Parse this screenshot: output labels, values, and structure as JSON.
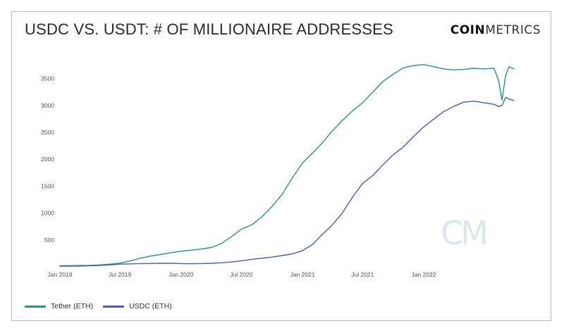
{
  "title": "USDC VS. USDT: # OF MILLIONAIRE ADDRESSES",
  "brand": {
    "bold": "COIN",
    "light": "METRICS"
  },
  "watermark": "CM",
  "colors": {
    "tether": "#24957e",
    "usdc": "#4b5cb6",
    "frame": "#b9b9b9",
    "watermark": "#dfe7ee"
  },
  "chart_data": {
    "type": "line",
    "title": "USDC VS. USDT: # OF MILLIONAIRE ADDRESSES",
    "xlabel": "",
    "ylabel": "",
    "x_range": [
      "2019-01-01",
      "2022-09-30"
    ],
    "ylim": [
      0,
      3900
    ],
    "grid": false,
    "legend": "bottom-left",
    "y_ticks": [
      500,
      1000,
      1500,
      2000,
      2500,
      3000,
      3500
    ],
    "y_tick_labels": [
      "500",
      "1000",
      "1500",
      "2000",
      "2500",
      "3000",
      "3500"
    ],
    "x_ticks": [
      "2019-01-01",
      "2019-07-01",
      "2020-01-01",
      "2020-07-01",
      "2021-01-01",
      "2021-07-01",
      "2022-01-01"
    ],
    "x_tick_labels": [
      "Jan 2019",
      "Jul 2019",
      "Jan 2020",
      "Jul 2020",
      "Jan 2021",
      "Jul 2021",
      "Jan 2022"
    ],
    "series": [
      {
        "name": "Tether (ETH)",
        "color": "#24957e",
        "points": [
          [
            "2019-01-01",
            20
          ],
          [
            "2019-02-01",
            22
          ],
          [
            "2019-03-01",
            25
          ],
          [
            "2019-04-01",
            28
          ],
          [
            "2019-05-01",
            35
          ],
          [
            "2019-06-01",
            50
          ],
          [
            "2019-07-01",
            70
          ],
          [
            "2019-08-01",
            110
          ],
          [
            "2019-09-01",
            160
          ],
          [
            "2019-10-01",
            200
          ],
          [
            "2019-11-01",
            230
          ],
          [
            "2019-12-01",
            260
          ],
          [
            "2020-01-01",
            290
          ],
          [
            "2020-02-01",
            310
          ],
          [
            "2020-03-01",
            330
          ],
          [
            "2020-04-01",
            360
          ],
          [
            "2020-05-01",
            430
          ],
          [
            "2020-06-01",
            560
          ],
          [
            "2020-07-01",
            700
          ],
          [
            "2020-08-01",
            780
          ],
          [
            "2020-09-01",
            930
          ],
          [
            "2020-10-01",
            1120
          ],
          [
            "2020-11-01",
            1350
          ],
          [
            "2020-12-01",
            1650
          ],
          [
            "2021-01-01",
            1930
          ],
          [
            "2021-02-01",
            2120
          ],
          [
            "2021-03-01",
            2300
          ],
          [
            "2021-04-01",
            2530
          ],
          [
            "2021-05-01",
            2720
          ],
          [
            "2021-06-01",
            2900
          ],
          [
            "2021-07-01",
            3050
          ],
          [
            "2021-08-01",
            3250
          ],
          [
            "2021-09-01",
            3450
          ],
          [
            "2021-10-01",
            3580
          ],
          [
            "2021-11-01",
            3700
          ],
          [
            "2021-12-01",
            3740
          ],
          [
            "2022-01-01",
            3760
          ],
          [
            "2022-02-01",
            3720
          ],
          [
            "2022-03-01",
            3680
          ],
          [
            "2022-04-01",
            3660
          ],
          [
            "2022-05-01",
            3670
          ],
          [
            "2022-06-01",
            3690
          ],
          [
            "2022-07-01",
            3680
          ],
          [
            "2022-08-01",
            3690
          ],
          [
            "2022-08-15",
            3460
          ],
          [
            "2022-08-25",
            3100
          ],
          [
            "2022-09-05",
            3560
          ],
          [
            "2022-09-15",
            3720
          ],
          [
            "2022-09-30",
            3680
          ]
        ]
      },
      {
        "name": "USDC (ETH)",
        "color": "#4b5cb6",
        "points": [
          [
            "2019-01-01",
            10
          ],
          [
            "2019-02-01",
            12
          ],
          [
            "2019-03-01",
            14
          ],
          [
            "2019-04-01",
            18
          ],
          [
            "2019-05-01",
            25
          ],
          [
            "2019-06-01",
            35
          ],
          [
            "2019-07-01",
            50
          ],
          [
            "2019-08-01",
            55
          ],
          [
            "2019-09-01",
            60
          ],
          [
            "2019-10-01",
            62
          ],
          [
            "2019-11-01",
            65
          ],
          [
            "2019-12-01",
            65
          ],
          [
            "2020-01-01",
            60
          ],
          [
            "2020-02-01",
            58
          ],
          [
            "2020-03-01",
            60
          ],
          [
            "2020-04-01",
            65
          ],
          [
            "2020-05-01",
            75
          ],
          [
            "2020-06-01",
            90
          ],
          [
            "2020-07-01",
            110
          ],
          [
            "2020-08-01",
            140
          ],
          [
            "2020-09-01",
            160
          ],
          [
            "2020-10-01",
            180
          ],
          [
            "2020-11-01",
            210
          ],
          [
            "2020-12-01",
            240
          ],
          [
            "2021-01-01",
            300
          ],
          [
            "2021-02-01",
            420
          ],
          [
            "2021-03-01",
            600
          ],
          [
            "2021-04-01",
            780
          ],
          [
            "2021-05-01",
            1000
          ],
          [
            "2021-06-01",
            1300
          ],
          [
            "2021-07-01",
            1550
          ],
          [
            "2021-08-01",
            1700
          ],
          [
            "2021-09-01",
            1900
          ],
          [
            "2021-10-01",
            2080
          ],
          [
            "2021-11-01",
            2230
          ],
          [
            "2021-12-01",
            2420
          ],
          [
            "2022-01-01",
            2600
          ],
          [
            "2022-02-01",
            2750
          ],
          [
            "2022-03-01",
            2880
          ],
          [
            "2022-04-01",
            2980
          ],
          [
            "2022-05-01",
            3060
          ],
          [
            "2022-06-01",
            3080
          ],
          [
            "2022-07-01",
            3050
          ],
          [
            "2022-08-01",
            3020
          ],
          [
            "2022-08-15",
            2980
          ],
          [
            "2022-08-25",
            3000
          ],
          [
            "2022-09-05",
            3150
          ],
          [
            "2022-09-15",
            3120
          ],
          [
            "2022-09-30",
            3090
          ]
        ]
      }
    ]
  }
}
